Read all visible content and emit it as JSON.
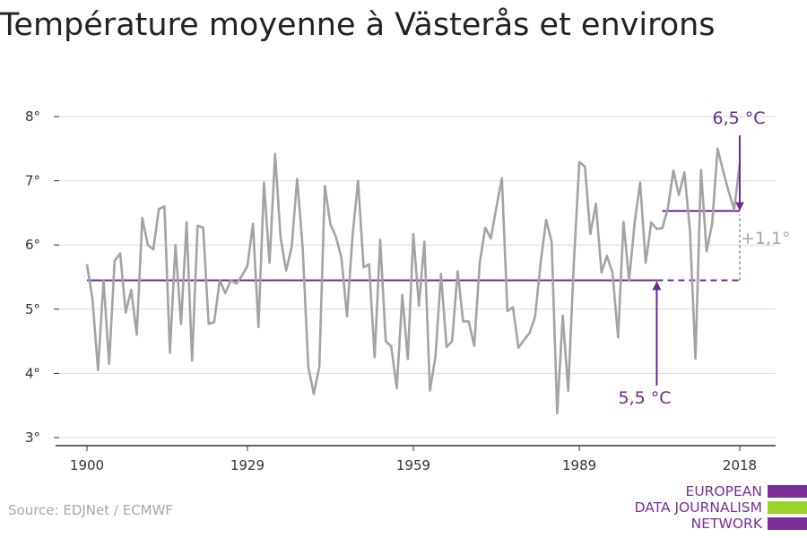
{
  "title": "Température moyenne à Västerås et environs",
  "source": "Source: EDJNet / ECMWF",
  "logo": {
    "lines": [
      "EUROPEAN",
      "DATA JOURNALISM",
      "NETWORK"
    ],
    "bar_colors": [
      "#7a2f96",
      "#9bd32a",
      "#7a2f96"
    ]
  },
  "colors": {
    "series": "#a3a3a3",
    "accent": "#6b2a91",
    "delta": "#a6a6a6",
    "grid": "#d9d9d9",
    "axis": "#333333"
  },
  "chart_data": {
    "type": "line",
    "title": "Température moyenne à Västerås et environs",
    "xlabel": "",
    "ylabel": "",
    "xlim": [
      1900,
      2018
    ],
    "ylim": [
      3,
      8
    ],
    "grid": true,
    "x_ticks": [
      1900,
      1929,
      1959,
      1989,
      2018
    ],
    "x_tick_labels": [
      "1900",
      "1929",
      "1959",
      "1989",
      "2018"
    ],
    "y_ticks": [
      3,
      4,
      5,
      6,
      7,
      8
    ],
    "y_tick_labels": [
      "3°",
      "4°",
      "5°",
      "6°",
      "7°",
      "8°"
    ],
    "series": [
      {
        "x": [
          1900,
          1901,
          1902,
          1903,
          1904,
          1905,
          1906,
          1907,
          1908,
          1909,
          1910,
          1911,
          1912,
          1913,
          1914,
          1915,
          1916,
          1917,
          1918,
          1919,
          1920,
          1921,
          1922,
          1923,
          1924,
          1925,
          1926,
          1927,
          1928,
          1929,
          1930,
          1931,
          1932,
          1933,
          1934,
          1935,
          1936,
          1937,
          1938,
          1939,
          1940,
          1941,
          1942,
          1943,
          1944,
          1945,
          1946,
          1947,
          1948,
          1949,
          1950,
          1951,
          1952,
          1953,
          1954,
          1955,
          1956,
          1957,
          1958,
          1959,
          1960,
          1961,
          1962,
          1963,
          1964,
          1965,
          1966,
          1967,
          1968,
          1969,
          1970,
          1971,
          1972,
          1973,
          1974,
          1975,
          1976,
          1977,
          1978,
          1979,
          1980,
          1981,
          1982,
          1983,
          1984,
          1985,
          1986,
          1987,
          1988,
          1989,
          1990,
          1991,
          1992,
          1993,
          1994,
          1995,
          1996,
          1997,
          1998,
          1999,
          2000,
          2001,
          2002,
          2003,
          2004,
          2005,
          2006,
          2007,
          2008,
          2009,
          2010,
          2011,
          2012,
          2013,
          2014,
          2015,
          2016,
          2017,
          2018
        ],
        "values": [
          5.7,
          5.15,
          4.05,
          5.45,
          4.15,
          5.75,
          5.87,
          4.95,
          5.3,
          4.6,
          6.42,
          6.0,
          5.93,
          6.56,
          6.6,
          4.32,
          6.0,
          4.77,
          6.35,
          4.2,
          6.3,
          6.27,
          4.77,
          4.8,
          5.45,
          5.25,
          5.45,
          5.4,
          5.52,
          5.67,
          6.33,
          4.72,
          6.97,
          5.72,
          7.42,
          6.12,
          5.6,
          5.97,
          7.03,
          5.95,
          4.1,
          3.68,
          4.1,
          6.92,
          6.32,
          6.13,
          5.8,
          4.89,
          6.13,
          7.0,
          5.65,
          5.7,
          4.25,
          6.08,
          4.5,
          4.42,
          3.77,
          5.22,
          4.22,
          6.17,
          5.05,
          6.05,
          3.73,
          4.27,
          5.55,
          4.41,
          4.5,
          5.59,
          4.81,
          4.81,
          4.43,
          5.72,
          6.27,
          6.1,
          6.58,
          7.04,
          4.97,
          5.03,
          4.4,
          4.52,
          4.63,
          4.88,
          5.72,
          6.39,
          6.05,
          3.38,
          4.9,
          3.73,
          5.7,
          7.29,
          7.22,
          6.17,
          6.64,
          5.57,
          5.83,
          5.57,
          4.56,
          6.36,
          5.44,
          6.35,
          6.97,
          5.72,
          6.35,
          6.25,
          6.26,
          6.57,
          7.16,
          6.78,
          7.13,
          6.22,
          4.23,
          7.17,
          5.9,
          6.33,
          7.5,
          7.15,
          6.83,
          6.55,
          7.28
        ],
        "color": "#a3a3a3"
      }
    ],
    "reference_lines": [
      {
        "x": [
          1900,
          2003
        ],
        "y": 5.45,
        "style": "solid"
      },
      {
        "x": [
          2003,
          2018
        ],
        "y": 5.45,
        "style": "dashed"
      },
      {
        "x": [
          2004,
          2018
        ],
        "y": 6.53,
        "style": "solid"
      }
    ],
    "annotations": {
      "new_avg_label": "6,5 °C",
      "old_avg_label": "5,5 °C",
      "delta_label": "+1,1°"
    }
  }
}
